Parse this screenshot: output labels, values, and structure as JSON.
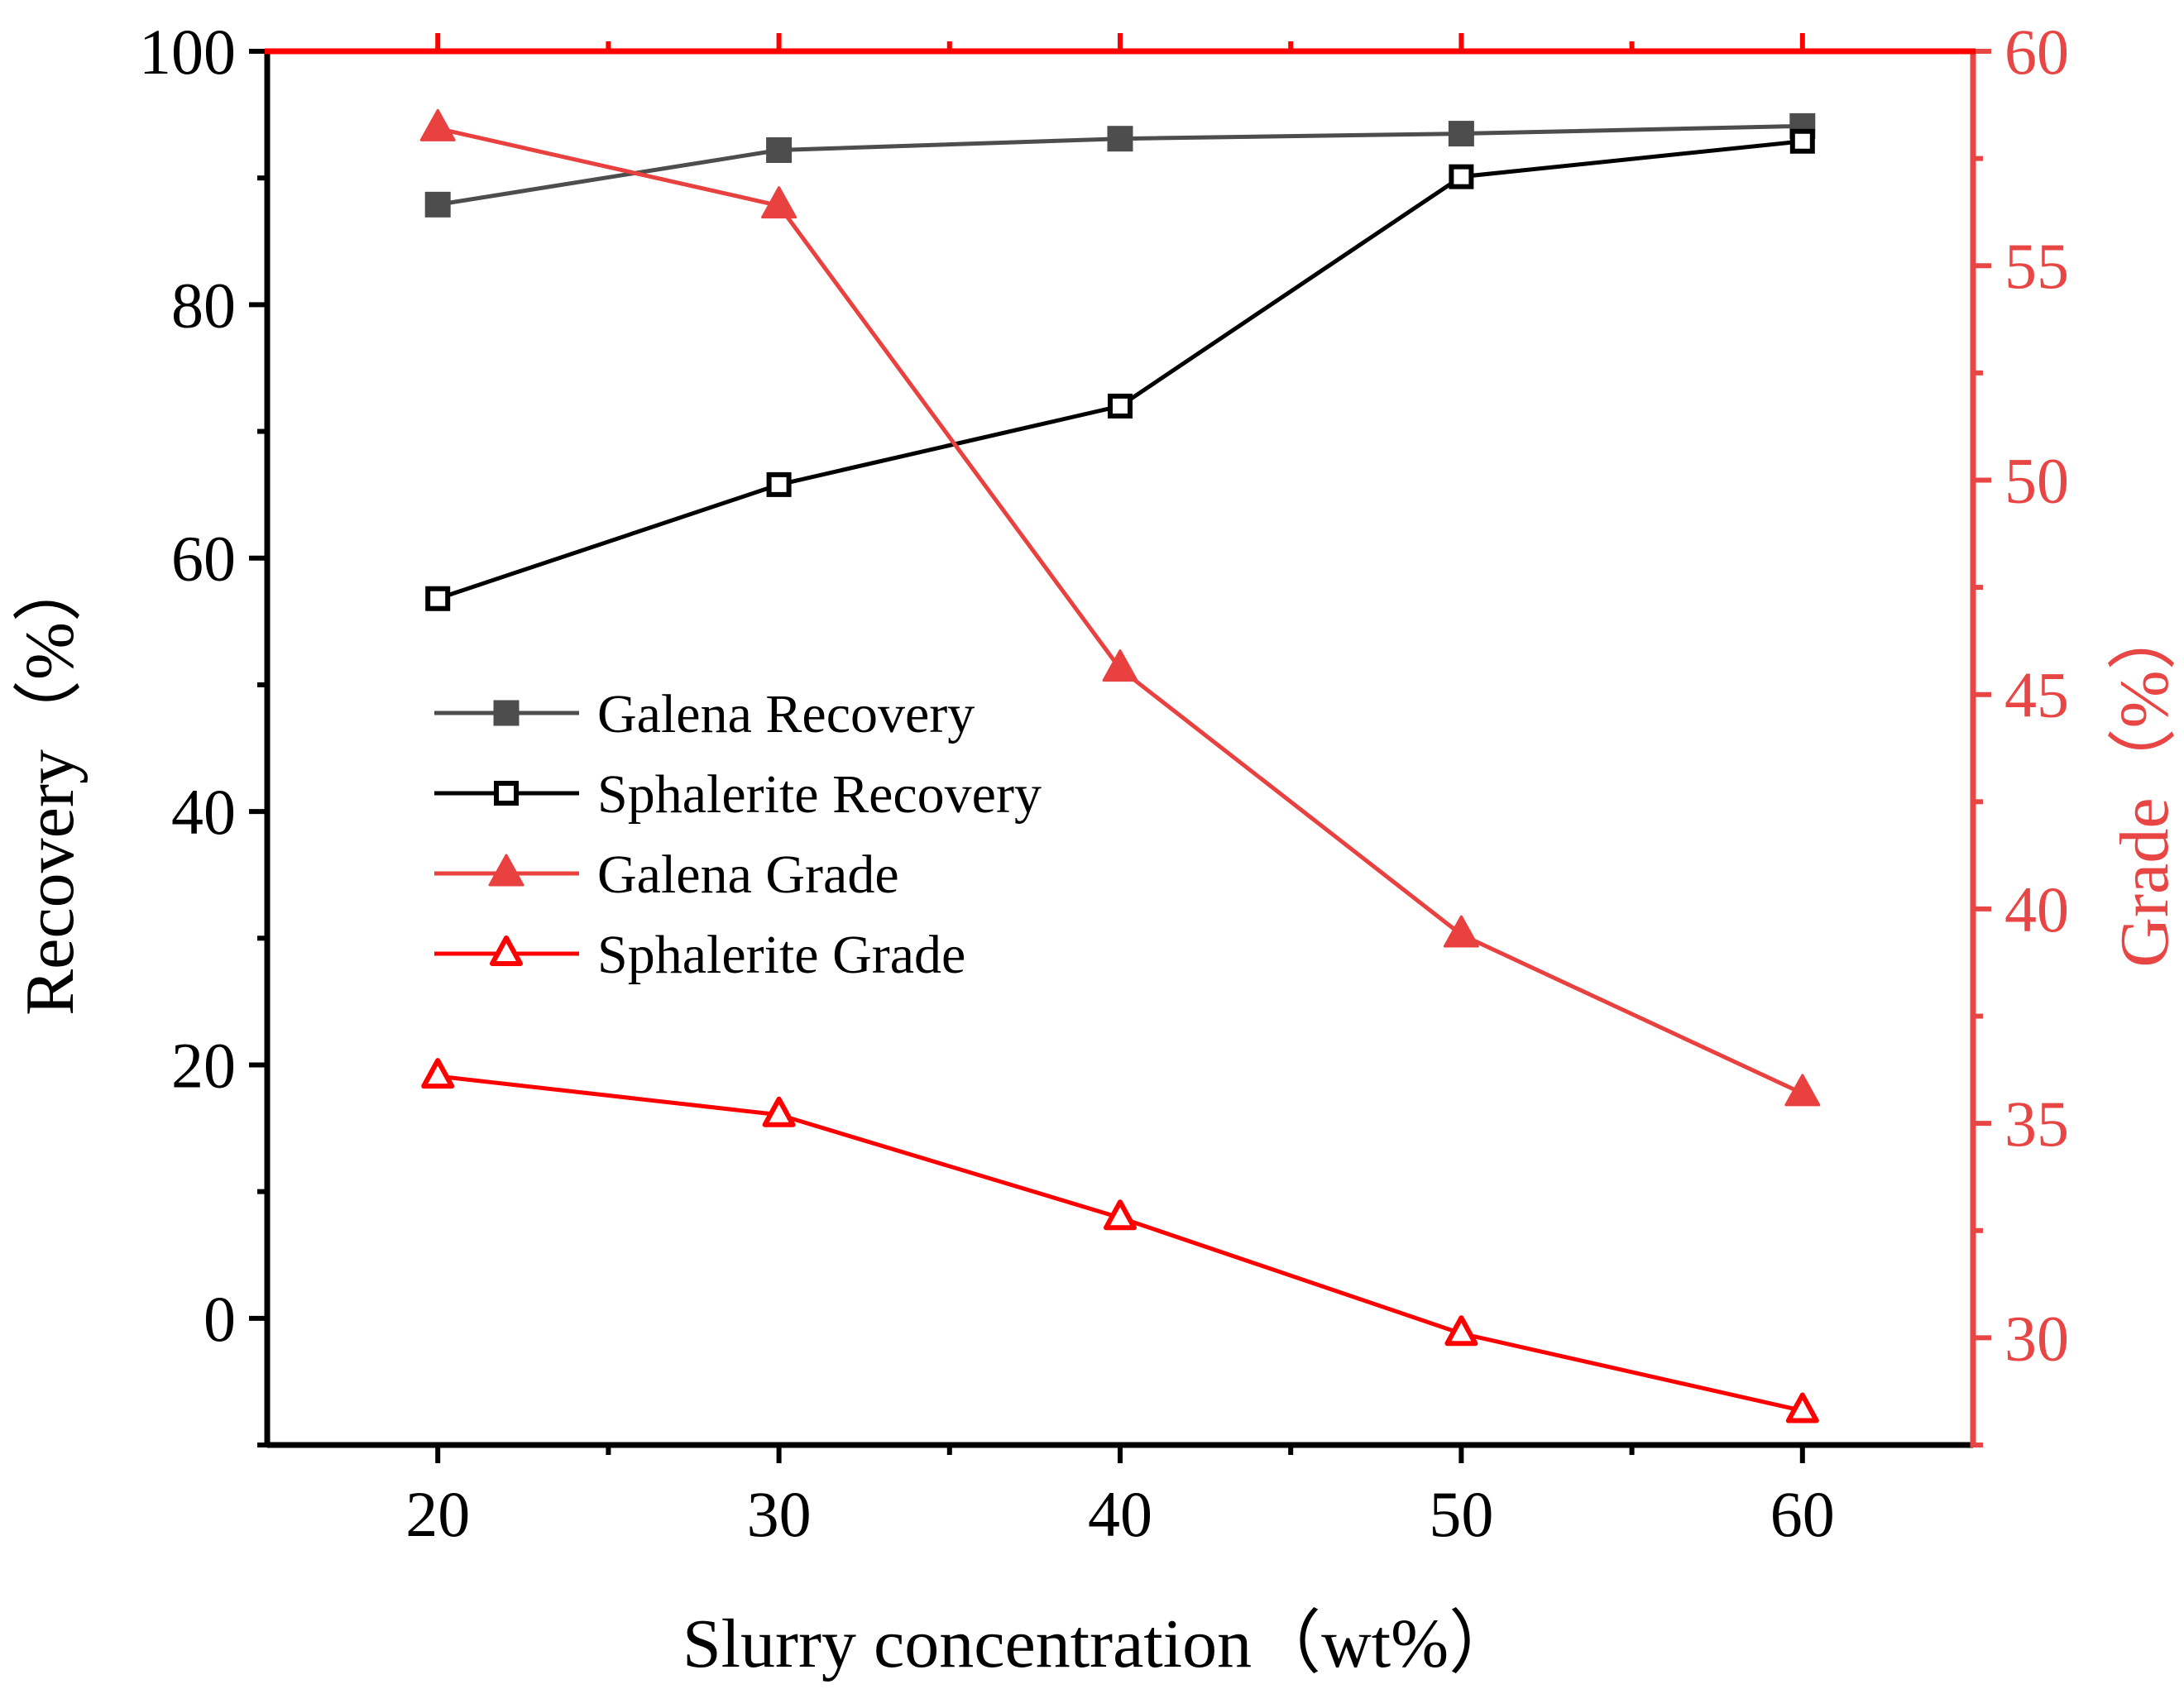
{
  "chart_data": {
    "type": "line",
    "x": [
      20,
      30,
      40,
      50,
      60
    ],
    "x_ticks": [
      "20",
      "30",
      "40",
      "50",
      "60"
    ],
    "y_left_ticks": [
      "0",
      "20",
      "40",
      "60",
      "80",
      "100"
    ],
    "y_right_ticks": [
      "30",
      "35",
      "40",
      "45",
      "50",
      "55",
      "60"
    ],
    "xlim": [
      15,
      65
    ],
    "ylim_left": [
      -10,
      100
    ],
    "ylim_right": [
      27.5,
      60
    ],
    "xlabel": "Slurry concentration（wt%）",
    "ylabel_left": "Recovery（%）",
    "ylabel_right": "Grade（%）",
    "legend_position": "center-left",
    "series": [
      {
        "name": "Galena Recovery",
        "axis": "left",
        "marker": "square-filled",
        "color": "#4d4d4d",
        "values": [
          87.9,
          92.2,
          93.1,
          93.5,
          94.1
        ]
      },
      {
        "name": "Sphalerite Recovery",
        "axis": "left",
        "marker": "square-open",
        "color": "#000000",
        "values": [
          56.8,
          65.8,
          72.0,
          90.1,
          92.9
        ]
      },
      {
        "name": "Galena Grade",
        "axis": "right",
        "marker": "triangle-filled",
        "color": "#e8413f",
        "values": [
          58.2,
          56.4,
          45.6,
          39.4,
          35.7
        ]
      },
      {
        "name": "Sphalerite Grade",
        "axis": "right",
        "marker": "triangle-open",
        "color": "#ff0000",
        "values": [
          36.1,
          35.2,
          32.8,
          30.1,
          28.3
        ]
      }
    ],
    "colors": {
      "left_axis": "#000000",
      "right_axis": "#e84545",
      "top_border": "#ff0000"
    }
  }
}
